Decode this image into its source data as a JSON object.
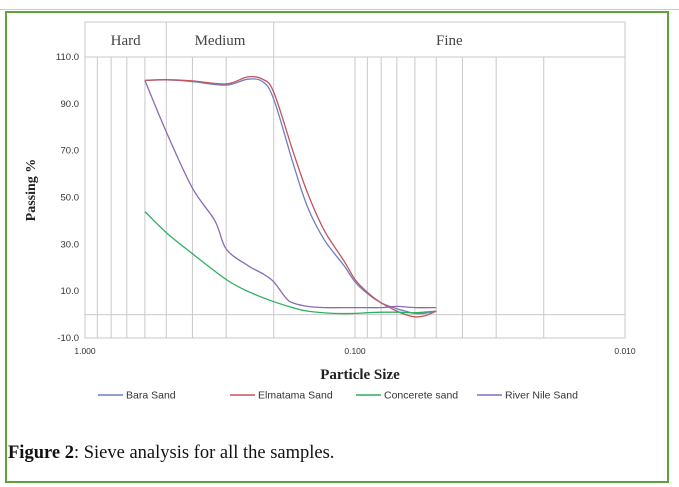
{
  "caption": {
    "label": "Figure 2",
    "text": ": Sieve analysis for all the samples."
  },
  "chart_data": {
    "type": "line",
    "xlabel": "Particle Size",
    "ylabel": "Passing %",
    "x_scale": "log",
    "x_reversed": true,
    "xlim": [
      1.0,
      0.01
    ],
    "ylim": [
      -10.0,
      110.0
    ],
    "x_ticks": [
      {
        "value": 1.0,
        "label": "1.000"
      },
      {
        "value": 0.1,
        "label": "0.100"
      },
      {
        "value": 0.01,
        "label": "0.010"
      }
    ],
    "y_ticks": [
      {
        "value": -10,
        "label": "-10.0"
      },
      {
        "value": 10,
        "label": "10.0"
      },
      {
        "value": 30,
        "label": "30.0"
      },
      {
        "value": 50,
        "label": "50.0"
      },
      {
        "value": 70,
        "label": "70.0"
      },
      {
        "value": 90,
        "label": "90.0"
      },
      {
        "value": 110,
        "label": "110.0"
      }
    ],
    "zones": [
      {
        "label": "Hard",
        "from": 1.0,
        "to": 0.5
      },
      {
        "label": "Medium",
        "from": 0.5,
        "to": 0.2
      },
      {
        "label": "Fine",
        "from": 0.2,
        "to": 0.01
      }
    ],
    "grid": true,
    "legend_position": "bottom",
    "series": [
      {
        "name": "Bara Sand",
        "color": "#6b7fc2",
        "points": [
          [
            0.6,
            100
          ],
          [
            0.5,
            100.2
          ],
          [
            0.4,
            99.5
          ],
          [
            0.3,
            98
          ],
          [
            0.25,
            100.5
          ],
          [
            0.22,
            99.5
          ],
          [
            0.2,
            92
          ],
          [
            0.17,
            65
          ],
          [
            0.15,
            46
          ],
          [
            0.13,
            32
          ],
          [
            0.11,
            21
          ],
          [
            0.1,
            14
          ],
          [
            0.09,
            9
          ],
          [
            0.08,
            5
          ],
          [
            0.07,
            2.5
          ],
          [
            0.065,
            1.5
          ],
          [
            0.06,
            0.5
          ],
          [
            0.055,
            0.6
          ],
          [
            0.05,
            1.5
          ]
        ]
      },
      {
        "name": "Elmatama Sand",
        "color": "#c4545c",
        "points": [
          [
            0.6,
            100
          ],
          [
            0.5,
            100.3
          ],
          [
            0.4,
            99.8
          ],
          [
            0.3,
            98.5
          ],
          [
            0.25,
            101.5
          ],
          [
            0.22,
            100.5
          ],
          [
            0.2,
            95
          ],
          [
            0.17,
            70
          ],
          [
            0.15,
            52
          ],
          [
            0.13,
            36
          ],
          [
            0.11,
            23
          ],
          [
            0.1,
            15
          ],
          [
            0.09,
            9.5
          ],
          [
            0.08,
            5
          ],
          [
            0.07,
            1.5
          ],
          [
            0.065,
            0
          ],
          [
            0.06,
            -1
          ],
          [
            0.055,
            -0.5
          ],
          [
            0.05,
            1.5
          ]
        ]
      },
      {
        "name": "Concerete sand",
        "color": "#2faf63",
        "points": [
          [
            0.6,
            44
          ],
          [
            0.5,
            35
          ],
          [
            0.4,
            26
          ],
          [
            0.3,
            15
          ],
          [
            0.25,
            10
          ],
          [
            0.2,
            5.5
          ],
          [
            0.17,
            3
          ],
          [
            0.15,
            1.5
          ],
          [
            0.12,
            0.5
          ],
          [
            0.1,
            0.5
          ],
          [
            0.09,
            0.8
          ],
          [
            0.08,
            1
          ],
          [
            0.07,
            1
          ],
          [
            0.06,
            0.8
          ],
          [
            0.05,
            1.5
          ]
        ]
      },
      {
        "name": "River Nile Sand",
        "color": "#8a6bb5",
        "points": [
          [
            0.6,
            100
          ],
          [
            0.5,
            78
          ],
          [
            0.4,
            54
          ],
          [
            0.33,
            40
          ],
          [
            0.3,
            28
          ],
          [
            0.25,
            21
          ],
          [
            0.22,
            17.5
          ],
          [
            0.2,
            14
          ],
          [
            0.18,
            7
          ],
          [
            0.17,
            5
          ],
          [
            0.15,
            3.5
          ],
          [
            0.13,
            3
          ],
          [
            0.1,
            3
          ],
          [
            0.08,
            3
          ],
          [
            0.07,
            3.5
          ],
          [
            0.06,
            3
          ],
          [
            0.05,
            3
          ]
        ]
      }
    ]
  }
}
